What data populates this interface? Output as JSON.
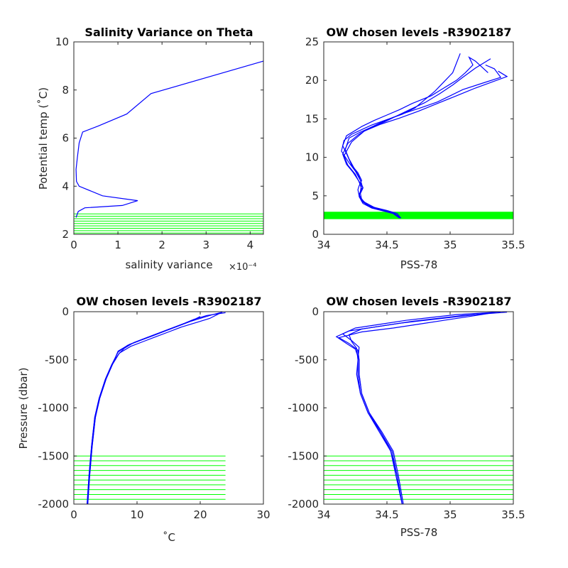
{
  "chart_data": [
    {
      "type": "line",
      "title": "Salinity Variance on Theta",
      "xlabel": "salinity variance",
      "xlabel_exponent": "×10⁻⁴",
      "ylabel": "Potential temp (˚C)",
      "xlim": [
        0,
        4.3
      ],
      "ylim": [
        2,
        10
      ],
      "xticks": [
        0,
        1,
        2,
        3,
        4
      ],
      "xtick_labels": [
        "0",
        "1",
        "2",
        "3",
        "4"
      ],
      "yticks": [
        2,
        4,
        6,
        8,
        10
      ],
      "ytick_labels": [
        "2",
        "4",
        "6",
        "8",
        "10"
      ],
      "colors": {
        "profile": "#0000ff",
        "levels": "#00ff00"
      },
      "series": [
        {
          "x": [
            4.3,
            1.75,
            1.2,
            0.55,
            0.2,
            0.12,
            0.08,
            0.05,
            0.06,
            0.12,
            0.65,
            1.45,
            1.1,
            0.25,
            0.1,
            0.05
          ],
          "y": [
            9.2,
            7.85,
            7.0,
            6.5,
            6.25,
            5.8,
            5.2,
            4.7,
            4.2,
            4.0,
            3.6,
            3.4,
            3.2,
            3.1,
            2.95,
            2.7
          ]
        }
      ],
      "hlines": {
        "y_values": [
          2.05,
          2.15,
          2.25,
          2.35,
          2.45,
          2.55,
          2.65,
          2.75,
          2.85
        ],
        "x_range": [
          0,
          4.3
        ]
      }
    },
    {
      "type": "line",
      "title": "OW chosen levels -R3902187",
      "xlabel": "PSS-78",
      "ylabel": "",
      "xlim": [
        34,
        35.5
      ],
      "ylim": [
        0,
        25
      ],
      "xticks": [
        34,
        34.5,
        35,
        35.5
      ],
      "xtick_labels": [
        "34",
        "34.5",
        "35",
        "35.5"
      ],
      "yticks": [
        0,
        5,
        10,
        15,
        20,
        25
      ],
      "ytick_labels": [
        "0",
        "5",
        "10",
        "15",
        "20",
        "25"
      ],
      "colors": {
        "profile": "#0000ff",
        "levels": "#00ff00"
      },
      "series": [
        {
          "x": [
            34.61,
            34.58,
            34.5,
            34.4,
            34.32,
            34.28,
            34.27,
            34.28,
            34.3,
            34.27,
            34.22,
            34.18,
            34.15,
            34.18,
            34.25,
            34.3,
            34.4,
            34.5,
            34.6,
            34.7,
            34.85,
            34.95,
            35.05,
            35.12,
            35.18,
            35.15,
            35.2,
            35.3
          ],
          "y": [
            2.1,
            2.7,
            3.1,
            3.5,
            4.2,
            5.0,
            5.8,
            6.3,
            7.0,
            8.0,
            9.0,
            10.5,
            11.5,
            12.8,
            13.5,
            14.0,
            14.8,
            15.5,
            16.2,
            17.0,
            18.0,
            19.0,
            20.0,
            21.0,
            22.0,
            23.0,
            22.5,
            21.0
          ]
        },
        {
          "x": [
            34.61,
            34.57,
            34.48,
            34.38,
            34.31,
            34.28,
            34.29,
            34.3,
            34.28,
            34.24,
            34.2,
            34.17,
            34.2,
            34.28,
            34.36,
            34.45,
            34.55,
            34.65,
            34.78,
            34.9,
            35.0,
            35.1,
            35.25,
            35.4,
            35.35,
            35.28
          ],
          "y": [
            2.1,
            2.6,
            3.0,
            3.4,
            4.0,
            4.9,
            5.6,
            6.5,
            7.5,
            8.6,
            9.8,
            11.0,
            12.5,
            13.2,
            13.8,
            14.5,
            15.2,
            15.8,
            16.5,
            17.2,
            18.0,
            18.8,
            19.6,
            20.4,
            21.5,
            22.0
          ]
        },
        {
          "x": [
            34.6,
            34.55,
            34.45,
            34.35,
            34.3,
            34.29,
            34.31,
            34.29,
            34.25,
            34.2,
            34.14,
            34.16,
            34.22,
            34.3,
            34.38,
            34.5,
            34.62,
            34.72,
            34.8,
            34.88,
            34.95,
            35.02,
            35.08
          ],
          "y": [
            2.1,
            2.8,
            3.2,
            3.8,
            4.5,
            5.3,
            6.0,
            7.0,
            8.2,
            9.3,
            10.8,
            12.2,
            13.0,
            13.6,
            14.2,
            14.9,
            15.6,
            16.4,
            17.5,
            18.6,
            19.8,
            21.0,
            23.5
          ]
        },
        {
          "x": [
            34.61,
            34.56,
            34.46,
            34.36,
            34.3,
            34.28,
            34.3,
            34.28,
            34.25,
            34.19,
            34.16,
            34.22,
            34.32,
            34.45,
            34.6,
            34.75,
            34.9,
            35.05,
            35.2,
            35.45,
            35.38
          ],
          "y": [
            2.1,
            2.7,
            3.1,
            3.6,
            4.3,
            5.1,
            5.9,
            6.8,
            7.8,
            9.0,
            10.2,
            12.0,
            13.4,
            14.3,
            15.1,
            16.0,
            17.0,
            18.0,
            19.0,
            20.5,
            21.2
          ]
        },
        {
          "x": [
            34.6,
            34.54,
            34.44,
            34.35,
            34.3,
            34.28,
            34.31,
            34.27,
            34.23,
            34.18,
            34.15,
            34.19,
            34.27,
            34.35,
            34.48,
            34.58,
            34.68,
            34.8,
            34.92,
            35.02,
            35.1,
            35.2,
            35.32
          ],
          "y": [
            2.1,
            2.8,
            3.2,
            3.7,
            4.4,
            5.2,
            6.1,
            7.1,
            8.1,
            9.1,
            10.4,
            11.8,
            12.9,
            13.7,
            14.6,
            15.4,
            16.2,
            17.1,
            18.3,
            19.4,
            20.4,
            21.6,
            22.8
          ]
        }
      ],
      "hlines": {
        "y_values": [
          2.05,
          2.15,
          2.25,
          2.35,
          2.45,
          2.55,
          2.65,
          2.75,
          2.85
        ],
        "x_range": [
          34,
          35.5
        ]
      }
    },
    {
      "type": "line",
      "title": "OW chosen levels -R3902187",
      "xlabel": "˚C",
      "ylabel": "Pressure (dbar)",
      "xlim": [
        0,
        30
      ],
      "ylim": [
        -2000,
        0
      ],
      "xticks": [
        0,
        10,
        20,
        30
      ],
      "xtick_labels": [
        "0",
        "10",
        "20",
        "30"
      ],
      "yticks": [
        -2000,
        -1500,
        -1000,
        -500,
        0
      ],
      "ytick_labels": [
        "-2000",
        "-1500",
        "-1000",
        "-500",
        "0"
      ],
      "colors": {
        "profile": "#0000ff",
        "levels": "#00ff00"
      },
      "series": [
        {
          "x": [
            2.1,
            2.4,
            2.8,
            3.3,
            4.0,
            5.0,
            6.0,
            7.0,
            8.5,
            10.5,
            12.5,
            14.5,
            16.5,
            18.5,
            20.5,
            22.0,
            23.5
          ],
          "y": [
            -2000,
            -1700,
            -1400,
            -1100,
            -900,
            -700,
            -550,
            -420,
            -350,
            -300,
            -250,
            -200,
            -150,
            -100,
            -60,
            -30,
            -5
          ]
        },
        {
          "x": [
            2.2,
            2.5,
            2.9,
            3.4,
            4.1,
            5.1,
            6.1,
            7.2,
            9.0,
            11.0,
            13.0,
            15.0,
            17.0,
            19.5,
            21.5,
            23.0
          ],
          "y": [
            -2000,
            -1700,
            -1400,
            -1100,
            -900,
            -700,
            -550,
            -430,
            -360,
            -310,
            -260,
            -210,
            -160,
            -110,
            -70,
            -20
          ]
        },
        {
          "x": [
            2.1,
            2.4,
            2.8,
            3.3,
            4.0,
            5.0,
            6.0,
            7.1,
            8.0,
            9.5,
            11.5,
            13.5,
            15.5,
            17.5,
            19.0,
            21.0,
            24.0
          ],
          "y": [
            -2000,
            -1700,
            -1400,
            -1100,
            -900,
            -700,
            -550,
            -440,
            -380,
            -320,
            -270,
            -220,
            -170,
            -120,
            -80,
            -40,
            -10
          ]
        },
        {
          "x": [
            2.2,
            2.5,
            2.9,
            3.4,
            4.1,
            5.1,
            6.1,
            7.0,
            8.8,
            10.8,
            12.8,
            14.8,
            16.8,
            18.8,
            20.0
          ],
          "y": [
            -2000,
            -1700,
            -1400,
            -1100,
            -900,
            -700,
            -550,
            -410,
            -340,
            -290,
            -240,
            -190,
            -140,
            -90,
            -50
          ]
        }
      ],
      "hlines": {
        "y_values": [
          -1950,
          -1900,
          -1850,
          -1800,
          -1750,
          -1700,
          -1650,
          -1600,
          -1550,
          -1500
        ],
        "x_range": [
          0,
          24
        ]
      }
    },
    {
      "type": "line",
      "title": "OW chosen levels -R3902187",
      "xlabel": "PSS-78",
      "ylabel": "",
      "xlim": [
        34,
        35.5
      ],
      "ylim": [
        -2000,
        0
      ],
      "xticks": [
        34,
        34.5,
        35,
        35.5
      ],
      "xtick_labels": [
        "34",
        "34.5",
        "35",
        "35.5"
      ],
      "yticks": [
        -2000,
        -1500,
        -1000,
        -500,
        0
      ],
      "ytick_labels": [
        "-2000",
        "-1500",
        "-1000",
        "-500",
        "0"
      ],
      "colors": {
        "profile": "#0000ff",
        "levels": "#00ff00"
      },
      "series": [
        {
          "x": [
            34.62,
            34.58,
            34.54,
            34.45,
            34.35,
            34.29,
            34.27,
            34.27,
            34.26,
            34.22,
            34.2,
            34.3,
            34.5,
            34.7,
            34.9,
            35.1,
            35.3,
            35.45
          ],
          "y": [
            -2000,
            -1700,
            -1450,
            -1250,
            -1050,
            -850,
            -650,
            -500,
            -380,
            -310,
            -240,
            -180,
            -140,
            -100,
            -70,
            -40,
            -20,
            -5
          ]
        },
        {
          "x": [
            34.63,
            34.59,
            34.55,
            34.46,
            34.36,
            34.3,
            34.28,
            34.28,
            34.25,
            34.18,
            34.1,
            34.2,
            34.4,
            34.6,
            34.8,
            35.0,
            35.2,
            35.35
          ],
          "y": [
            -2000,
            -1700,
            -1450,
            -1250,
            -1050,
            -850,
            -650,
            -500,
            -390,
            -330,
            -260,
            -200,
            -160,
            -120,
            -90,
            -60,
            -30,
            -10
          ]
        },
        {
          "x": [
            34.62,
            34.58,
            34.53,
            34.44,
            34.35,
            34.29,
            34.26,
            34.27,
            34.28,
            34.22,
            34.15,
            34.25,
            34.45,
            34.65,
            34.85,
            35.05,
            35.25,
            35.4
          ],
          "y": [
            -2000,
            -1700,
            -1450,
            -1250,
            -1050,
            -850,
            -650,
            -500,
            -370,
            -300,
            -230,
            -170,
            -130,
            -90,
            -60,
            -30,
            -15,
            -2
          ]
        },
        {
          "x": [
            34.62,
            34.57,
            34.53,
            34.45,
            34.36,
            34.3,
            34.28,
            34.28,
            34.27,
            34.2,
            34.12,
            34.3,
            34.55,
            34.75,
            34.95,
            35.15,
            35.3
          ],
          "y": [
            -2000,
            -1700,
            -1450,
            -1250,
            -1050,
            -850,
            -650,
            -500,
            -400,
            -330,
            -270,
            -210,
            -170,
            -130,
            -90,
            -50,
            -20
          ]
        }
      ],
      "hlines": {
        "y_values": [
          -1950,
          -1900,
          -1850,
          -1800,
          -1750,
          -1700,
          -1650,
          -1600,
          -1550,
          -1500
        ],
        "x_range": [
          34,
          35.5
        ]
      }
    }
  ]
}
